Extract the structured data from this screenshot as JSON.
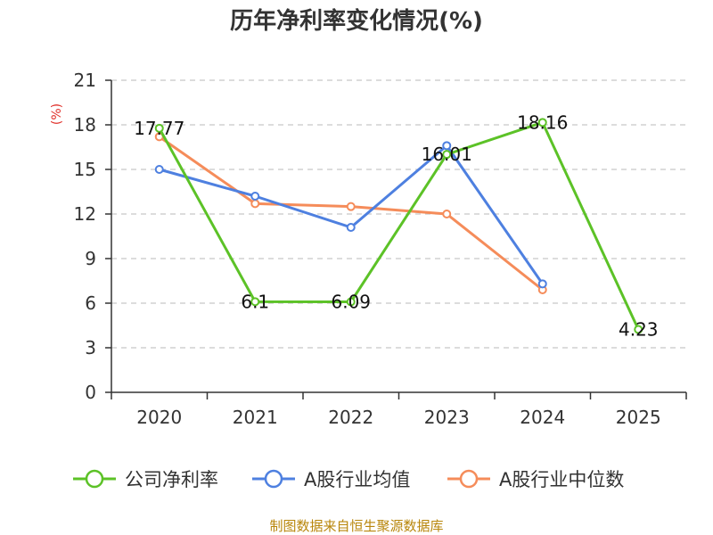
{
  "chart_data": {
    "type": "line",
    "title": "历年净利率变化情况(%)",
    "xlabel": "",
    "ylabel": "(%)",
    "categories": [
      "2020",
      "2021",
      "2022",
      "2023",
      "2024",
      "2025"
    ],
    "ylim": [
      0,
      21
    ],
    "yticks": [
      0,
      3,
      6,
      9,
      12,
      15,
      18,
      21
    ],
    "grid": true,
    "legend_position": "bottom",
    "series": [
      {
        "name": "公司净利率",
        "color": "#5cc227",
        "values": [
          17.77,
          6.1,
          6.09,
          16.01,
          18.16,
          4.23
        ],
        "labels": [
          "17.77",
          "6.1",
          "6.09",
          "16.01",
          "18.16",
          "4.23"
        ]
      },
      {
        "name": "A股行业均值",
        "color": "#4e80e0",
        "values": [
          15.0,
          13.2,
          11.1,
          16.6,
          7.3,
          null
        ]
      },
      {
        "name": "A股行业中位数",
        "color": "#f58c5a",
        "values": [
          17.2,
          12.7,
          12.5,
          12.0,
          6.9,
          null
        ]
      }
    ]
  },
  "source": "制图数据来自恒生聚源数据库"
}
